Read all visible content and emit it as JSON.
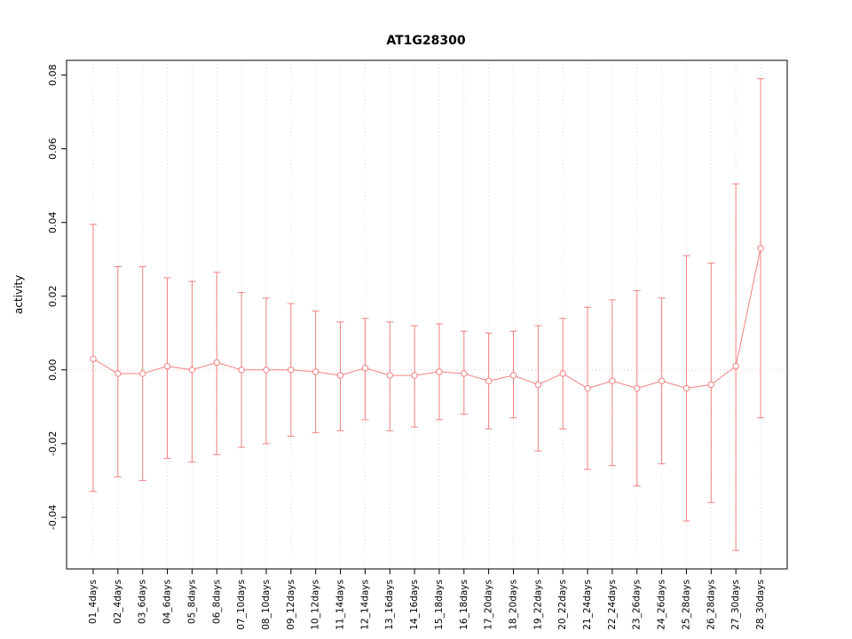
{
  "chart_data": {
    "type": "line",
    "title": "AT1G28300",
    "xlabel": "",
    "ylabel": "activity",
    "grid": "light dotted vertical gridlines at each category; dotted reference line at y=0",
    "legend": "none",
    "ylim": [
      -0.054,
      0.084
    ],
    "yticks": [
      -0.04,
      -0.02,
      0.0,
      0.02,
      0.04,
      0.06,
      0.08
    ],
    "categories": [
      "01_4days",
      "02_4days",
      "03_6days",
      "04_6days",
      "05_8days",
      "06_8days",
      "07_10days",
      "08_10days",
      "09_12days",
      "10_12days",
      "11_14days",
      "12_14days",
      "13_16days",
      "14_16days",
      "15_18days",
      "16_18days",
      "17_20days",
      "18_20days",
      "19_22days",
      "20_22days",
      "21_24days",
      "22_24days",
      "23_26days",
      "24_26days",
      "25_28days",
      "26_28days",
      "27_30days",
      "28_30days"
    ],
    "series": [
      {
        "name": "activity",
        "values": [
          0.003,
          -0.001,
          -0.001,
          0.001,
          0.0,
          0.002,
          0.0,
          0.0,
          0.0,
          -0.0005,
          -0.0015,
          0.0005,
          -0.0015,
          -0.0015,
          -0.0005,
          -0.001,
          -0.003,
          -0.0015,
          -0.004,
          -0.001,
          -0.005,
          -0.003,
          -0.005,
          -0.003,
          -0.005,
          -0.004,
          0.001,
          0.033
        ]
      }
    ],
    "error_upper": [
      0.0395,
      0.028,
      0.028,
      0.025,
      0.024,
      0.0265,
      0.021,
      0.0195,
      0.018,
      0.016,
      0.013,
      0.014,
      0.013,
      0.012,
      0.0125,
      0.0105,
      0.01,
      0.0105,
      0.012,
      0.014,
      0.017,
      0.019,
      0.0215,
      0.0195,
      0.031,
      0.029,
      0.0505,
      0.079
    ],
    "error_lower": [
      -0.033,
      -0.029,
      -0.03,
      -0.024,
      -0.025,
      -0.023,
      -0.021,
      -0.02,
      -0.018,
      -0.017,
      -0.0165,
      -0.0135,
      -0.0165,
      -0.0155,
      -0.0135,
      -0.012,
      -0.016,
      -0.013,
      -0.022,
      -0.016,
      -0.027,
      -0.026,
      -0.0315,
      -0.0255,
      -0.041,
      -0.036,
      -0.049,
      -0.013
    ],
    "colors": {
      "series": "#f08080",
      "point_fill": "#ffffff",
      "zero_line": "#ffc0c0",
      "grid": "#dcdcdc",
      "box": "#000000"
    }
  }
}
